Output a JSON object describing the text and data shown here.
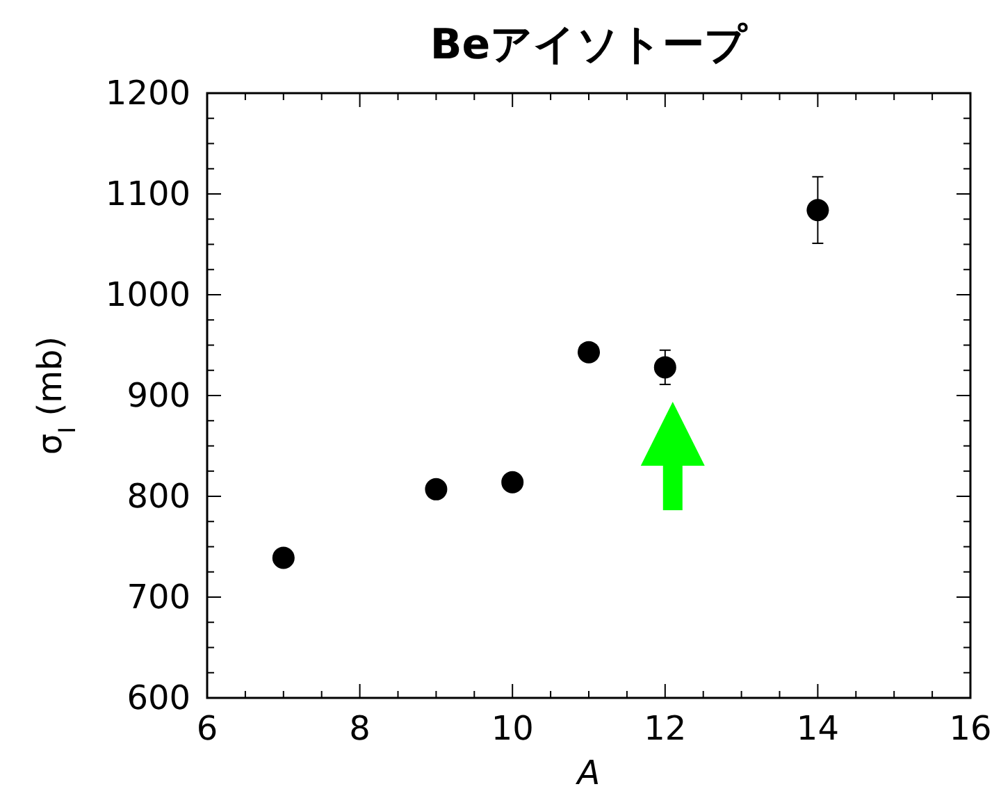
{
  "chart_data": {
    "type": "scatter",
    "title": "Beアイソトープ",
    "xlabel": "A",
    "ylabel": "σ$_{I}$ (mb)",
    "x": [
      7,
      9,
      10,
      11,
      12,
      14
    ],
    "series": [
      {
        "color": "#000000",
        "values": [
          739,
          807,
          814,
          943,
          928,
          1084
        ],
        "errors": [
          null,
          null,
          null,
          null,
          17,
          33
        ]
      }
    ],
    "xlim": [
      6,
      16
    ],
    "xticks": [
      6,
      8,
      10,
      12,
      14,
      16
    ],
    "ylim": [
      600,
      1200
    ],
    "yticks": [
      600,
      700,
      800,
      900,
      1000,
      1100,
      1200
    ],
    "marker": "circle",
    "grid": false
  }
}
